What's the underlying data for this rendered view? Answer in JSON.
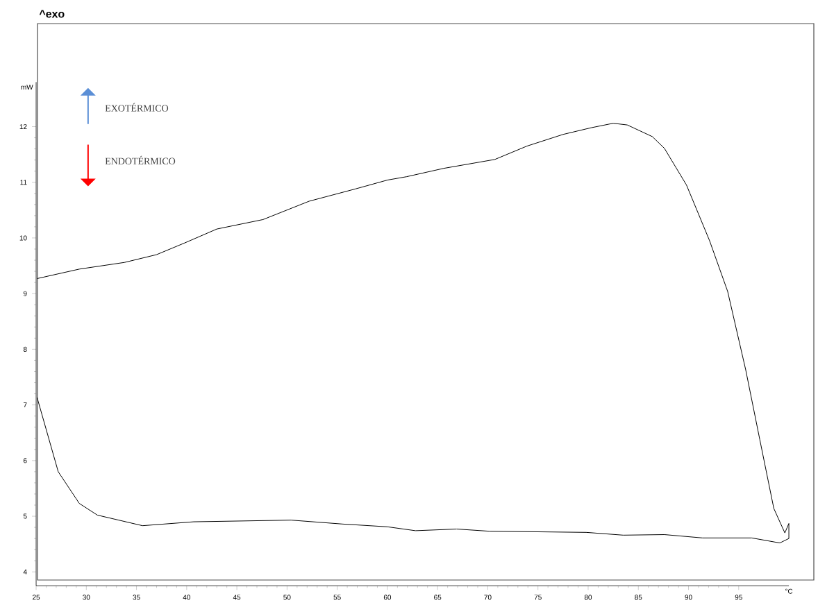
{
  "chart_data": {
    "type": "line",
    "xlabel": "°C",
    "ylabel": "mW",
    "annotations": [
      "^exo",
      "EXOTÉRMICO",
      "ENDOTÉRMICO"
    ],
    "xlim": [
      25,
      100
    ],
    "ylim": [
      3.75,
      12.8
    ],
    "xticks": [
      25,
      30,
      35,
      40,
      45,
      50,
      55,
      60,
      65,
      70,
      75,
      80,
      85,
      90,
      95
    ],
    "yticks": [
      4,
      5,
      6,
      7,
      8,
      9,
      10,
      11,
      12
    ],
    "marker": "none",
    "line_style": "solid",
    "series": [
      {
        "color": "#000000",
        "x": [
          25.1,
          27.2,
          29.3,
          31.1,
          35.6,
          40.7,
          50.4,
          55.5,
          60,
          62.8,
          66.9,
          70.2,
          79.8,
          83.5,
          87.6,
          91.4,
          96.3,
          99.1,
          100,
          100,
          99.6,
          98.5,
          97.1,
          95.7,
          93.9,
          92.1,
          89.8,
          87.6,
          86.4,
          83.9,
          82.5,
          80.3,
          77.5,
          73.9,
          70.7,
          65.6,
          61.9,
          60,
          56.8,
          52.2,
          47.6,
          43.0,
          39.8,
          37.0,
          33.8,
          29.3,
          25.1
        ],
        "values": [
          7.13,
          5.8,
          5.23,
          5.02,
          4.83,
          4.9,
          4.93,
          4.86,
          4.81,
          4.74,
          4.77,
          4.73,
          4.71,
          4.66,
          4.67,
          4.61,
          4.61,
          4.52,
          4.6,
          4.87,
          4.7,
          5.14,
          6.38,
          7.63,
          9.04,
          9.95,
          10.95,
          11.61,
          11.82,
          12.03,
          12.06,
          11.98,
          11.86,
          11.65,
          11.41,
          11.25,
          11.1,
          11.04,
          10.88,
          10.66,
          10.33,
          10.16,
          9.91,
          9.7,
          9.56,
          9.44,
          9.27
        ]
      }
    ]
  }
}
